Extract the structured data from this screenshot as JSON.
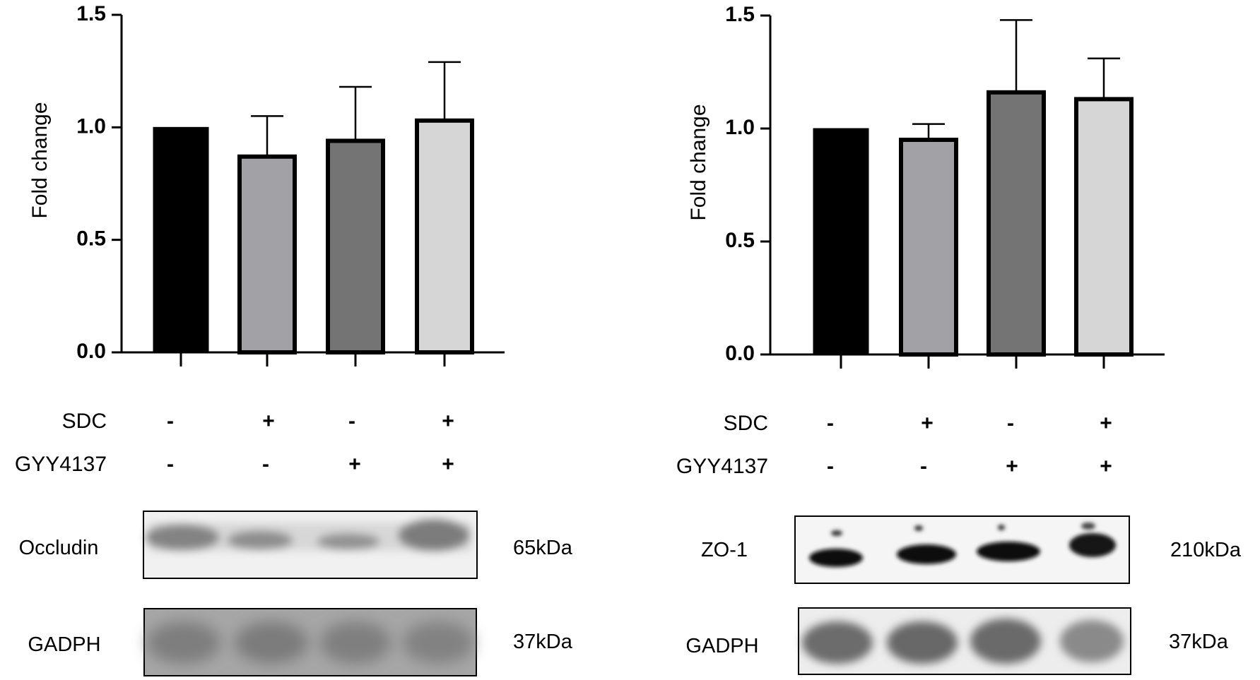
{
  "chart_data": [
    {
      "type": "bar",
      "ylabel": "Fold change",
      "ylim": [
        0,
        1.5
      ],
      "yticks": [
        "0.0",
        "0.5",
        "1.0",
        "1.5"
      ],
      "categories": [
        "SDC- GYY4137-",
        "SDC+ GYY4137-",
        "SDC- GYY4137+",
        "SDC+ GYY4137+"
      ],
      "values": [
        1.0,
        0.87,
        0.94,
        1.03
      ],
      "errors": [
        0,
        0.18,
        0.24,
        0.26
      ],
      "colors": [
        "#000000",
        "#a1a1a6",
        "#747474",
        "#d6d6d6"
      ],
      "conditions": [
        {
          "label": "SDC",
          "signs": [
            "-",
            "+",
            "-",
            "+"
          ]
        },
        {
          "label": "GYY4137",
          "signs": [
            "-",
            "-",
            "+",
            "+"
          ]
        }
      ],
      "blots": [
        {
          "label": "Occludin",
          "size": "65kDa"
        },
        {
          "label": "GADPH",
          "size": "37kDa"
        }
      ]
    },
    {
      "type": "bar",
      "ylabel": "Fold change",
      "ylim": [
        0,
        1.5
      ],
      "yticks": [
        "0.0",
        "0.5",
        "1.0",
        "1.5"
      ],
      "categories": [
        "SDC- GYY4137-",
        "SDC+ GYY4137-",
        "SDC- GYY4137+",
        "SDC+ GYY4137+"
      ],
      "values": [
        1.0,
        0.95,
        1.16,
        1.13
      ],
      "errors": [
        0,
        0.07,
        0.32,
        0.18
      ],
      "colors": [
        "#000000",
        "#a1a1a6",
        "#747474",
        "#d6d6d6"
      ],
      "conditions": [
        {
          "label": "SDC",
          "signs": [
            "-",
            "+",
            "-",
            "+"
          ]
        },
        {
          "label": "GYY4137",
          "signs": [
            "-",
            "-",
            "+",
            "+"
          ]
        }
      ],
      "blots": [
        {
          "label": "ZO-1",
          "size": "210kDa"
        },
        {
          "label": "GADPH",
          "size": "37kDa"
        }
      ]
    }
  ]
}
